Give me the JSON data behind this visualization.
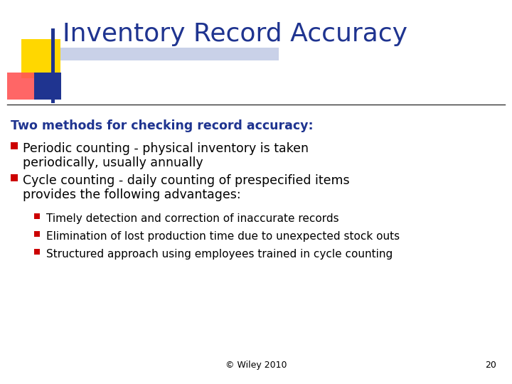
{
  "title": "Inventory Record Accuracy",
  "title_color": "#1F3490",
  "title_fontsize": 26,
  "background_color": "#FFFFFF",
  "subtitle": "Two methods for checking record accuracy:",
  "subtitle_color": "#1F3490",
  "subtitle_fontsize": 12.5,
  "bullet1_line1": "Periodic counting - physical inventory is taken",
  "bullet1_line2": "periodically, usually annually",
  "bullet2_line1": "Cycle counting - daily counting of prespecified items",
  "bullet2_line2": "provides the following advantages:",
  "sub_bullet1": "Timely detection and correction of inaccurate records",
  "sub_bullet2": "Elimination of lost production time due to unexpected stock outs",
  "sub_bullet3": "Structured approach using employees trained in cycle counting",
  "bullet_color": "#CC0000",
  "text_color": "#000000",
  "bullet_fontsize": 12.5,
  "sub_bullet_fontsize": 11,
  "footer": "© Wiley 2010",
  "page_number": "20",
  "footer_color": "#000000",
  "line_color": "#333333",
  "decoration_yellow": "#FFD700",
  "decoration_red": "#FF5555",
  "decoration_blue": "#1F3490",
  "decoration_lightblue": "#8899CC"
}
